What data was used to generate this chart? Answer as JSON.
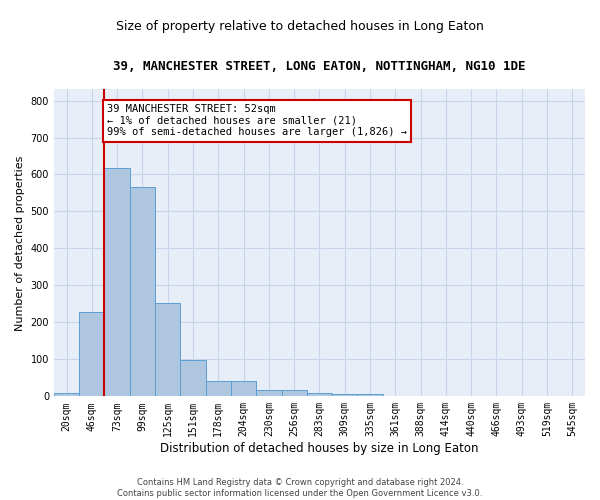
{
  "title1": "39, MANCHESTER STREET, LONG EATON, NOTTINGHAM, NG10 1DE",
  "title2": "Size of property relative to detached houses in Long Eaton",
  "xlabel": "Distribution of detached houses by size in Long Eaton",
  "ylabel": "Number of detached properties",
  "footnote": "Contains HM Land Registry data © Crown copyright and database right 2024.\nContains public sector information licensed under the Open Government Licence v3.0.",
  "bar_labels": [
    "20sqm",
    "46sqm",
    "73sqm",
    "99sqm",
    "125sqm",
    "151sqm",
    "178sqm",
    "204sqm",
    "230sqm",
    "256sqm",
    "283sqm",
    "309sqm",
    "335sqm",
    "361sqm",
    "388sqm",
    "414sqm",
    "440sqm",
    "466sqm",
    "493sqm",
    "519sqm",
    "545sqm"
  ],
  "bar_heights": [
    8,
    228,
    618,
    567,
    252,
    97,
    42,
    42,
    18,
    18,
    8,
    5,
    5,
    0,
    0,
    0,
    0,
    0,
    0,
    0,
    0
  ],
  "bar_color": "#aec6e0",
  "bar_edge_color": "#5a9fd4",
  "annotation_text": "39 MANCHESTER STREET: 52sqm\n← 1% of detached houses are smaller (21)\n99% of semi-detached houses are larger (1,826) →",
  "vline_x": 1.5,
  "ylim": [
    0,
    830
  ],
  "yticks": [
    0,
    100,
    200,
    300,
    400,
    500,
    600,
    700,
    800
  ],
  "grid_color": "#c8d4e8",
  "background_color": "#e8eef8",
  "annotation_box_color": "#ffffff",
  "annotation_border_color": "#cc0000",
  "vline_color": "#cc0000",
  "title1_fontsize": 9,
  "title2_fontsize": 9,
  "xlabel_fontsize": 8.5,
  "ylabel_fontsize": 8,
  "tick_fontsize": 7,
  "annotation_fontsize": 7.5,
  "footnote_fontsize": 6
}
